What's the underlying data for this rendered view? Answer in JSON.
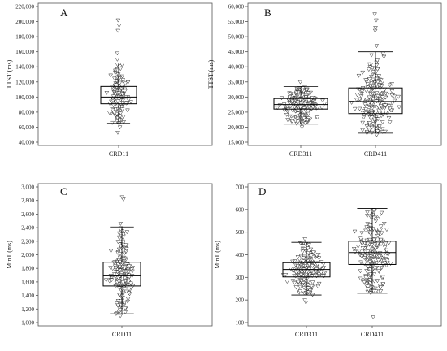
{
  "chart_data": [
    {
      "type": "box",
      "panel": "A",
      "ylabel": "TTST (ms)",
      "ylim": [
        40000,
        220000
      ],
      "yticks": [
        40000,
        60000,
        80000,
        100000,
        120000,
        140000,
        160000,
        180000,
        200000,
        220000
      ],
      "ytick_labels": [
        "40,000",
        "60,000",
        "80,000",
        "100,000",
        "120,000",
        "140,000",
        "160,000",
        "180,000",
        "200,000",
        "220,000"
      ],
      "groups": [
        {
          "category": "CRD11",
          "min": 65000,
          "q1": 91000,
          "median": 100000,
          "q3": 114000,
          "max": 145000,
          "n": 180,
          "outliers": [
            53000,
            188000,
            195000,
            202000,
            158000,
            150000,
            60000
          ]
        }
      ]
    },
    {
      "type": "box",
      "panel": "B",
      "ylabel": "TTST (ms)",
      "ylim": [
        15000,
        60000
      ],
      "yticks": [
        15000,
        20000,
        25000,
        30000,
        35000,
        40000,
        45000,
        50000,
        55000,
        60000
      ],
      "ytick_labels": [
        "15,000",
        "20,000",
        "25,000",
        "30,000",
        "35,000",
        "40,000",
        "45,000",
        "50,000",
        "55,000",
        "60,000"
      ],
      "groups": [
        {
          "category": "CRD311",
          "min": 21000,
          "q1": 26000,
          "median": 27500,
          "q3": 29500,
          "max": 33500,
          "n": 220,
          "outliers": [
            35000,
            20000
          ]
        },
        {
          "category": "CRD411",
          "min": 18000,
          "q1": 24500,
          "median": 28500,
          "q3": 33000,
          "max": 45000,
          "n": 230,
          "outliers": [
            47000,
            52000,
            53000,
            55500,
            57500,
            17500
          ]
        }
      ]
    },
    {
      "type": "box",
      "panel": "C",
      "ylabel": "MinT (ms)",
      "ylim": [
        1000,
        3000
      ],
      "yticks": [
        1000,
        1200,
        1400,
        1600,
        1800,
        2000,
        2200,
        2400,
        2600,
        2800,
        3000
      ],
      "ytick_labels": [
        "1,000",
        "1,200",
        "1,400",
        "1,600",
        "1,800",
        "2,000",
        "2,200",
        "2,400",
        "2,600",
        "2,800",
        "3,000"
      ],
      "groups": [
        {
          "category": "CRD11",
          "min": 1130,
          "q1": 1540,
          "median": 1690,
          "q3": 1890,
          "max": 2410,
          "n": 200,
          "outliers": [
            2820,
            2850,
            2460,
            1100
          ]
        }
      ]
    },
    {
      "type": "box",
      "panel": "D",
      "ylabel": "MinT (ms)",
      "ylim": [
        100,
        700
      ],
      "yticks": [
        100,
        200,
        300,
        400,
        500,
        600,
        700
      ],
      "ytick_labels": [
        "100",
        "200",
        "300",
        "400",
        "500",
        "600",
        "700"
      ],
      "groups": [
        {
          "category": "CRD311",
          "min": 222,
          "q1": 302,
          "median": 335,
          "q3": 365,
          "max": 455,
          "n": 230,
          "outliers": [
            190,
            200,
            470
          ]
        },
        {
          "category": "CRD411",
          "min": 230,
          "q1": 357,
          "median": 410,
          "q3": 460,
          "max": 605,
          "n": 230,
          "outliers": [
            125
          ]
        }
      ]
    }
  ]
}
